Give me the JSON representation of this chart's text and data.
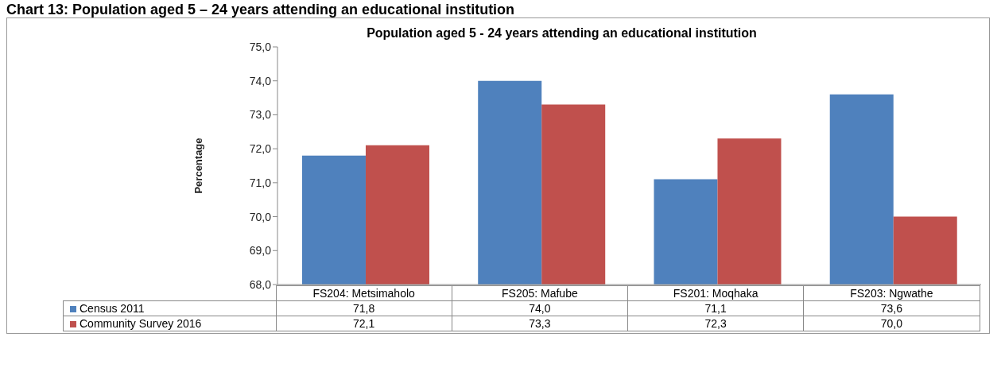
{
  "chart_data": {
    "type": "bar",
    "title": "Chart 13: Population aged 5 – 24 years attending an educational institution",
    "subtitle": "Population aged 5 - 24 years attending an educational institution",
    "ylabel": "Percentage",
    "categories": [
      "FS204: Metsimaholo",
      "FS205: Mafube",
      "FS201: Moqhaka",
      "FS203: Ngwathe"
    ],
    "series": [
      {
        "name": "Census 2011",
        "color": "#4f81bd",
        "values": [
          71.8,
          74.0,
          71.1,
          73.6
        ],
        "value_labels": [
          "71,8",
          "74,0",
          "71,1",
          "73,6"
        ]
      },
      {
        "name": "Community Survey 2016",
        "color": "#c0504d",
        "values": [
          72.1,
          73.3,
          72.3,
          70.0
        ],
        "value_labels": [
          "72,1",
          "73,3",
          "72,3",
          "70,0"
        ]
      }
    ],
    "ylim": [
      68,
      75
    ],
    "yticks": [
      {
        "value": 68,
        "label": "68,0"
      },
      {
        "value": 69,
        "label": "69,0"
      },
      {
        "value": 70,
        "label": "70,0"
      },
      {
        "value": 71,
        "label": "71,0"
      },
      {
        "value": 72,
        "label": "72,0"
      },
      {
        "value": 73,
        "label": "73,0"
      },
      {
        "value": 74,
        "label": "74,0"
      },
      {
        "value": 75,
        "label": "75,0"
      }
    ],
    "legend": "bottom"
  }
}
